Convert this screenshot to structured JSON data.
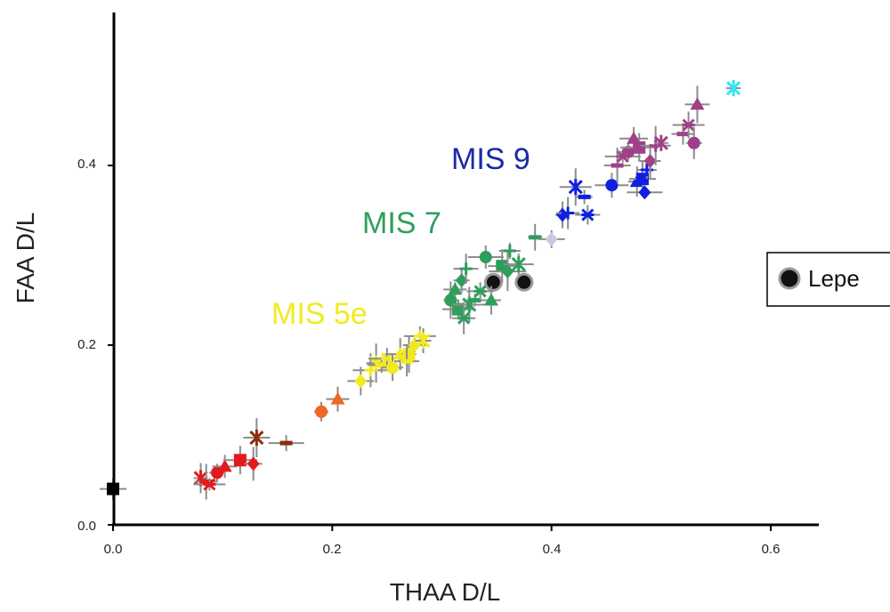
{
  "chart_data": {
    "type": "scatter",
    "title": "",
    "xlabel": "THAA D/L",
    "ylabel": "FAA D/L",
    "xlim": [
      0,
      0.64
    ],
    "ylim": [
      0,
      0.52
    ],
    "xticks": [
      "0.0",
      "0.2",
      "0.4",
      "0.6"
    ],
    "yticks": [
      "0.0",
      "0.2",
      "0.4"
    ],
    "xtick_values": [
      0,
      0.2,
      0.4,
      0.6
    ],
    "ytick_values": [
      0,
      0.2,
      0.4
    ],
    "grid": false,
    "annotations": [
      {
        "text": "MIS 9",
        "x": 0.31,
        "y": 0.405,
        "color": "#1a2aa8"
      },
      {
        "text": "MIS 7",
        "x": 0.225,
        "y": 0.335,
        "color": "#2e9e5c"
      },
      {
        "text": "MIS 5e",
        "x": 0.145,
        "y": 0.23,
        "color": "#f2ea1e"
      }
    ],
    "legend": {
      "entries": [
        "Lepe"
      ],
      "placement": "right"
    },
    "series": [
      {
        "name": "Lepe",
        "color": "#111111",
        "marker": "circle-ringed",
        "points": [
          [
            0.347,
            0.27
          ],
          [
            0.375,
            0.27
          ]
        ]
      },
      {
        "color": "#000000",
        "marker": "square",
        "points": [
          [
            0.0,
            0.04
          ]
        ]
      },
      {
        "color": "#e31a1c",
        "marker": "mixed",
        "points": [
          [
            0.08,
            0.052
          ],
          [
            0.085,
            0.048
          ],
          [
            0.088,
            0.045
          ],
          [
            0.095,
            0.058
          ],
          [
            0.102,
            0.065
          ],
          [
            0.116,
            0.072
          ],
          [
            0.128,
            0.068
          ]
        ]
      },
      {
        "color": "#8b2e0c",
        "marker": "mixed",
        "points": [
          [
            0.131,
            0.097
          ],
          [
            0.158,
            0.091
          ]
        ]
      },
      {
        "color": "#f26522",
        "marker": "mixed",
        "points": [
          [
            0.19,
            0.126
          ],
          [
            0.205,
            0.14
          ]
        ]
      },
      {
        "color": "#f2ea1e",
        "marker": "mixed",
        "points": [
          [
            0.226,
            0.16
          ],
          [
            0.235,
            0.172
          ],
          [
            0.24,
            0.18
          ],
          [
            0.245,
            0.178
          ],
          [
            0.25,
            0.185
          ],
          [
            0.255,
            0.175
          ],
          [
            0.262,
            0.19
          ],
          [
            0.27,
            0.19
          ],
          [
            0.275,
            0.2
          ],
          [
            0.28,
            0.21
          ],
          [
            0.283,
            0.205
          ],
          [
            0.268,
            0.182
          ]
        ]
      },
      {
        "color": "#2e9e5c",
        "marker": "mixed",
        "points": [
          [
            0.308,
            0.25
          ],
          [
            0.312,
            0.262
          ],
          [
            0.315,
            0.24
          ],
          [
            0.318,
            0.272
          ],
          [
            0.322,
            0.285
          ],
          [
            0.325,
            0.245
          ],
          [
            0.33,
            0.25
          ],
          [
            0.335,
            0.26
          ],
          [
            0.34,
            0.298
          ],
          [
            0.345,
            0.25
          ],
          [
            0.355,
            0.288
          ],
          [
            0.36,
            0.282
          ],
          [
            0.362,
            0.305
          ],
          [
            0.37,
            0.29
          ],
          [
            0.385,
            0.32
          ],
          [
            0.32,
            0.23
          ]
        ]
      },
      {
        "color": "#c8c8e0",
        "marker": "diamond",
        "points": [
          [
            0.4,
            0.318
          ]
        ]
      },
      {
        "color": "#1020e0",
        "marker": "mixed",
        "points": [
          [
            0.41,
            0.345
          ],
          [
            0.415,
            0.347
          ],
          [
            0.422,
            0.376
          ],
          [
            0.43,
            0.365
          ],
          [
            0.433,
            0.345
          ],
          [
            0.455,
            0.378
          ],
          [
            0.478,
            0.382
          ],
          [
            0.483,
            0.385
          ],
          [
            0.485,
            0.37
          ],
          [
            0.487,
            0.395
          ]
        ]
      },
      {
        "color": "#a0408a",
        "marker": "mixed",
        "points": [
          [
            0.46,
            0.4
          ],
          [
            0.465,
            0.41
          ],
          [
            0.47,
            0.415
          ],
          [
            0.475,
            0.43
          ],
          [
            0.48,
            0.42
          ],
          [
            0.49,
            0.405
          ],
          [
            0.495,
            0.422
          ],
          [
            0.5,
            0.425
          ],
          [
            0.52,
            0.435
          ],
          [
            0.525,
            0.445
          ],
          [
            0.53,
            0.425
          ],
          [
            0.533,
            0.468
          ]
        ]
      },
      {
        "color": "#35e6f0",
        "marker": "asterisk",
        "points": [
          [
            0.566,
            0.486
          ]
        ]
      }
    ]
  }
}
